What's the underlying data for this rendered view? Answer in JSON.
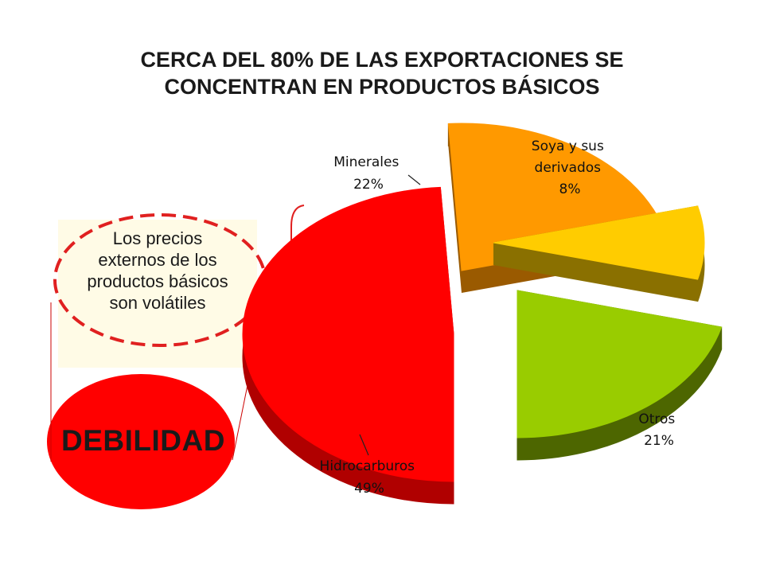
{
  "title_lines": [
    "CERCA DEL 80% DE LAS EXPORTACIONES SE",
    "CONCENTRAN EN PRODUCTOS BÁSICOS"
  ],
  "note": {
    "lines": [
      "Los precios",
      "externos de los",
      "productos básicos",
      "son volátiles"
    ],
    "border_color": "#e02020",
    "background": "#fffbe6"
  },
  "weakness": {
    "label": "DEBILIDAD",
    "color": "#ff0000"
  },
  "chart_data": {
    "type": "pie",
    "style": "3d-exploded",
    "slices": [
      {
        "name": "Hidrocarburos",
        "value": 49,
        "value_label": "49%",
        "color": "#ff0000",
        "side_color": "#b00000"
      },
      {
        "name": "Minerales",
        "value": 22,
        "value_label": "22%",
        "color": "#ff9900",
        "side_color": "#9a5a00"
      },
      {
        "name": "Soya y sus derivados",
        "value": 8,
        "value_label": "8%",
        "color": "#ffcc00",
        "side_color": "#8a7000"
      },
      {
        "name": "Otros",
        "value": 21,
        "value_label": "21%",
        "color": "#99cc00",
        "side_color": "#4d6600"
      }
    ],
    "labels": {
      "hidrocarburos": [
        "Hidrocarburos",
        "49%"
      ],
      "minerales": [
        "Minerales",
        "22%"
      ],
      "soya": [
        "Soya y sus",
        "derivados",
        "8%"
      ],
      "otros": [
        "Otros",
        "21%"
      ]
    }
  }
}
